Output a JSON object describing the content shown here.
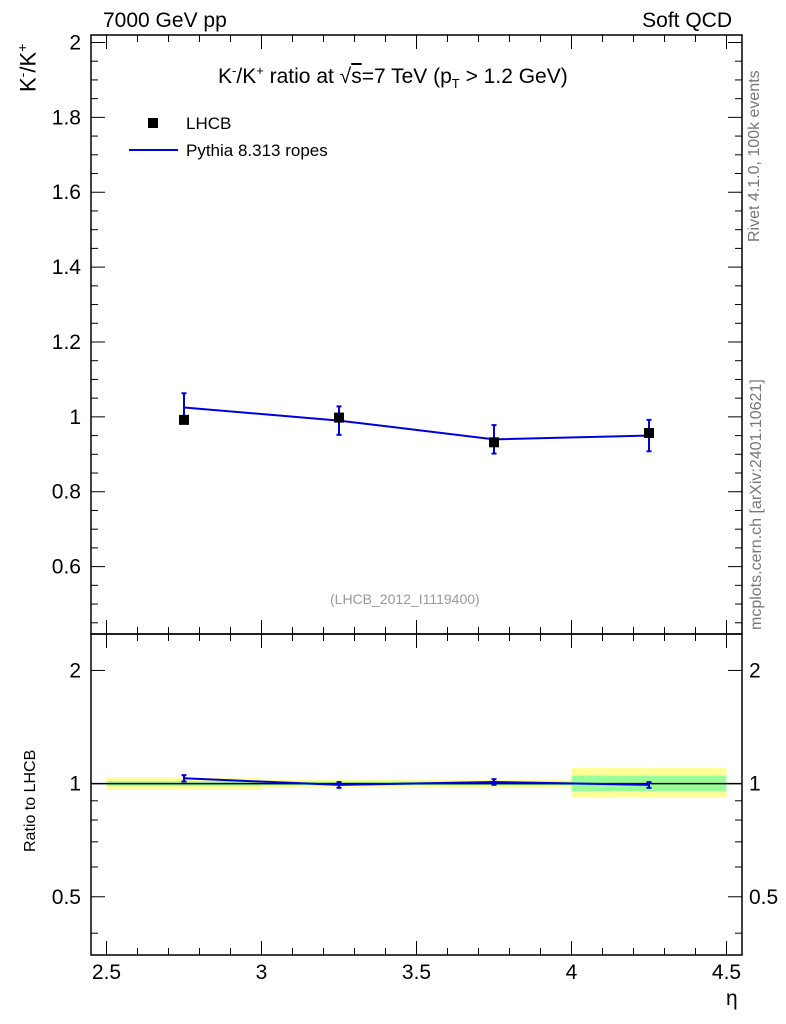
{
  "header": {
    "left": "7000 GeV pp",
    "right": "Soft QCD"
  },
  "sidebar": {
    "rivet": "Rivet 4.1.0,  100k events",
    "mcplots": "mcplots.cern.ch [arXiv:2401.10621]"
  },
  "reference_tag": "(LHCB_2012_I1119400)",
  "legend": {
    "data_label": "LHCB",
    "mc_label": "Pythia 8.313 ropes"
  },
  "colors": {
    "mc": "#0000dd",
    "data": "#000000",
    "band_inner": "#99ff99",
    "band_outer": "#ffff99"
  },
  "chart_data": [
    {
      "type": "scatter",
      "panel": "main",
      "title": "K⁻/K⁺ ratio at √s=7 TeV (p_T > 1.2 GeV)",
      "ylabel": "K⁻/K⁺",
      "xlabel": "",
      "xlim": [
        2.45,
        4.55
      ],
      "ylim": [
        0.42,
        2.02
      ],
      "yticks": [
        0.6,
        0.8,
        1.0,
        1.2,
        1.4,
        1.6,
        1.8,
        2.0
      ],
      "ytick_labels": [
        "0.6",
        "0.8",
        "1",
        "1.2",
        "1.4",
        "1.6",
        "1.8",
        "2"
      ],
      "series": [
        {
          "name": "LHCB",
          "kind": "points",
          "x": [
            2.75,
            3.25,
            3.75,
            4.25
          ],
          "y": [
            0.992,
            0.998,
            0.932,
            0.957
          ],
          "yerr": [
            0.007,
            0.008,
            0.008,
            0.009
          ]
        },
        {
          "name": "Pythia 8.313 ropes",
          "kind": "line",
          "x": [
            2.75,
            3.25,
            3.75,
            4.25
          ],
          "y": [
            1.025,
            0.99,
            0.94,
            0.95
          ],
          "yerr": [
            0.038,
            0.038,
            0.038,
            0.042
          ],
          "bin_edges": [
            2.5,
            3.0,
            3.5,
            4.0,
            4.5
          ]
        }
      ]
    },
    {
      "type": "line",
      "panel": "ratio",
      "ylabel": "Ratio to LHCB",
      "xlabel": "η",
      "xlim": [
        2.45,
        4.55
      ],
      "ylim": [
        0.35,
        2.5
      ],
      "yscale": "log",
      "yticks": [
        0.5,
        1,
        2
      ],
      "ytick_labels": [
        "0.5",
        "1",
        "2"
      ],
      "xticks": [
        2.5,
        3,
        3.5,
        4,
        4.5
      ],
      "xtick_labels": [
        "2.5",
        "3",
        "3.5",
        "4",
        "4.5"
      ],
      "bands": [
        {
          "x0": 2.5,
          "x1": 3.0,
          "inner": [
            0.985,
            1.015
          ],
          "outer": [
            0.965,
            1.035
          ]
        },
        {
          "x0": 3.0,
          "x1": 3.5,
          "inner": [
            0.99,
            1.012
          ],
          "outer": [
            0.978,
            1.025
          ]
        },
        {
          "x0": 3.5,
          "x1": 4.0,
          "inner": [
            0.99,
            1.012
          ],
          "outer": [
            0.978,
            1.025
          ]
        },
        {
          "x0": 4.0,
          "x1": 4.5,
          "inner": [
            0.955,
            1.05
          ],
          "outer": [
            0.92,
            1.1
          ]
        }
      ],
      "series": [
        {
          "name": "Pythia 8.313 ropes / LHCB",
          "x": [
            2.75,
            3.25,
            3.75,
            4.25
          ],
          "y": [
            1.033,
            0.992,
            1.01,
            0.992
          ],
          "yerr": [
            0.04,
            0.035,
            0.035,
            0.035
          ]
        }
      ]
    }
  ]
}
